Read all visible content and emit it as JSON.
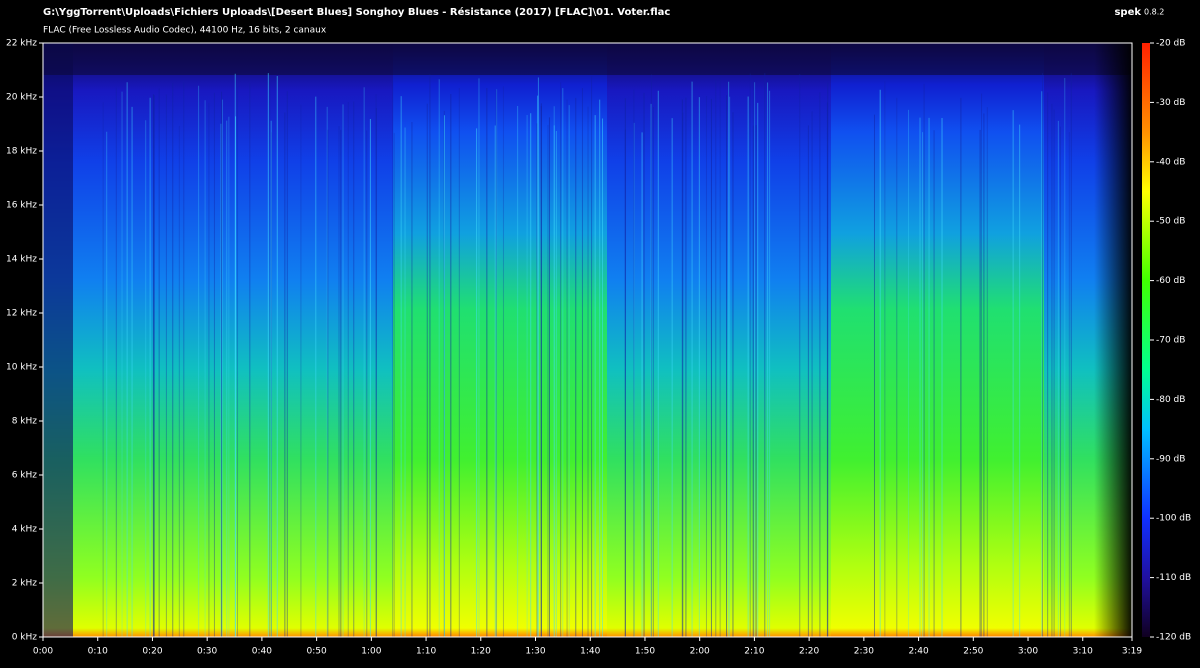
{
  "header": {
    "path": "G:\\YggTorrent\\Uploads\\Fichiers Uploads\\[Desert Blues] Songhoy Blues - Résistance (2017) [FLAC]\\01. Voter.flac",
    "format": "FLAC (Free Lossless Audio Codec), 44100 Hz, 16 bits, 2 canaux",
    "app": "spek",
    "version": "0.8.2"
  },
  "spectrogram": {
    "xlim": [
      0,
      199
    ],
    "xticks": [
      {
        "value": 0,
        "label": "0:00"
      },
      {
        "value": 10,
        "label": "0:10"
      },
      {
        "value": 20,
        "label": "0:20"
      },
      {
        "value": 30,
        "label": "0:30"
      },
      {
        "value": 40,
        "label": "0:40"
      },
      {
        "value": 50,
        "label": "0:50"
      },
      {
        "value": 60,
        "label": "1:00"
      },
      {
        "value": 70,
        "label": "1:10"
      },
      {
        "value": 80,
        "label": "1:20"
      },
      {
        "value": 90,
        "label": "1:30"
      },
      {
        "value": 100,
        "label": "1:40"
      },
      {
        "value": 110,
        "label": "1:50"
      },
      {
        "value": 120,
        "label": "2:00"
      },
      {
        "value": 130,
        "label": "2:10"
      },
      {
        "value": 140,
        "label": "2:20"
      },
      {
        "value": 150,
        "label": "2:30"
      },
      {
        "value": 160,
        "label": "2:40"
      },
      {
        "value": 170,
        "label": "2:50"
      },
      {
        "value": 180,
        "label": "3:00"
      },
      {
        "value": 190,
        "label": "3:10"
      },
      {
        "value": 199,
        "label": "3:19"
      }
    ],
    "ylim": [
      0,
      22
    ],
    "yticks": [
      {
        "value": 0,
        "label": "0 kHz"
      },
      {
        "value": 2,
        "label": "2 kHz"
      },
      {
        "value": 4,
        "label": "4 kHz"
      },
      {
        "value": 6,
        "label": "6 kHz"
      },
      {
        "value": 8,
        "label": "8 kHz"
      },
      {
        "value": 10,
        "label": "10 kHz"
      },
      {
        "value": 12,
        "label": "12 kHz"
      },
      {
        "value": 14,
        "label": "14 kHz"
      },
      {
        "value": 16,
        "label": "16 kHz"
      },
      {
        "value": 18,
        "label": "18 kHz"
      },
      {
        "value": 20,
        "label": "20 kHz"
      },
      {
        "value": 22,
        "label": "22 kHz"
      }
    ],
    "colorbar": {
      "lim": [
        -120,
        -20
      ],
      "ticks": [
        {
          "value": -20,
          "label": "-20 dB"
        },
        {
          "value": -30,
          "label": "-30 dB"
        },
        {
          "value": -40,
          "label": "-40 dB"
        },
        {
          "value": -50,
          "label": "-50 dB"
        },
        {
          "value": -60,
          "label": "-60 dB"
        },
        {
          "value": -70,
          "label": "-70 dB"
        },
        {
          "value": -80,
          "label": "-80 dB"
        },
        {
          "value": -90,
          "label": "-90 dB"
        },
        {
          "value": -100,
          "label": "-100 dB"
        },
        {
          "value": -110,
          "label": "-110 dB"
        },
        {
          "value": -120,
          "label": "-120 dB"
        }
      ]
    }
  }
}
